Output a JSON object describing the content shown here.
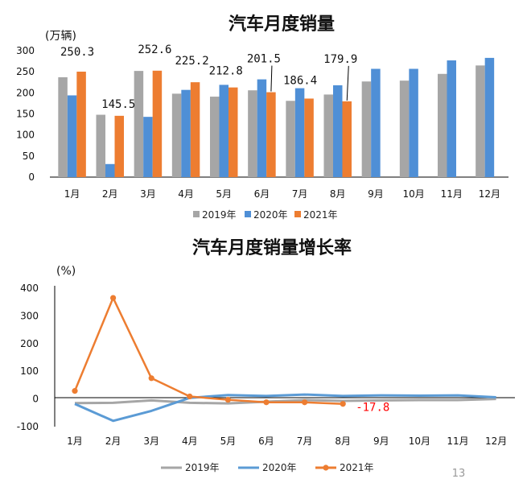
{
  "chart_data": [
    {
      "type": "bar",
      "title": "汽车月度销量",
      "unit_label": "(万辆)",
      "categories": [
        "1月",
        "2月",
        "3月",
        "4月",
        "5月",
        "6月",
        "7月",
        "8月",
        "9月",
        "10月",
        "11月",
        "12月"
      ],
      "ylim": [
        0,
        300
      ],
      "yticks": [
        0,
        50,
        100,
        150,
        200,
        250,
        300
      ],
      "grid": false,
      "legend_position": "bottom",
      "series": [
        {
          "name": "2019年",
          "color": "#a6a6a6",
          "values": [
            237,
            148,
            252,
            198,
            191,
            206,
            181,
            196,
            227,
            229,
            245,
            265
          ]
        },
        {
          "name": "2020年",
          "color": "#4f8fd6",
          "values": [
            194,
            31,
            143,
            207,
            219,
            232,
            211,
            218,
            257,
            257,
            277,
            283
          ]
        },
        {
          "name": "2021年",
          "color": "#ed7d31",
          "values": [
            250.3,
            145.5,
            252.6,
            225.2,
            212.8,
            201.5,
            186.4,
            179.9,
            null,
            null,
            null,
            null
          ]
        }
      ],
      "data_labels": [
        {
          "index": 0,
          "text": "250.3"
        },
        {
          "index": 1,
          "text": "145.5"
        },
        {
          "index": 2,
          "text": "252.6"
        },
        {
          "index": 3,
          "text": "225.2"
        },
        {
          "index": 4,
          "text": "212.8"
        },
        {
          "index": 5,
          "text": "201.5"
        },
        {
          "index": 6,
          "text": "186.4"
        },
        {
          "index": 7,
          "text": "179.9"
        }
      ]
    },
    {
      "type": "line",
      "title": "汽车月度销量增长率",
      "unit_label": "(%)",
      "categories": [
        "1月",
        "2月",
        "3月",
        "4月",
        "5月",
        "6月",
        "7月",
        "8月",
        "9月",
        "10月",
        "11月",
        "12月"
      ],
      "ylim": [
        -100,
        400
      ],
      "yticks": [
        -100,
        0,
        100,
        200,
        300,
        400
      ],
      "grid": false,
      "legend_position": "bottom",
      "series": [
        {
          "name": "2019年",
          "color": "#a6a6a6",
          "values": [
            -15,
            -14,
            -5,
            -14,
            -16,
            -10,
            -4,
            -7,
            -5,
            -4,
            -4,
            0
          ]
        },
        {
          "name": "2020年",
          "color": "#5b9bd5",
          "values": [
            -18,
            -79,
            -43,
            4,
            14,
            11,
            16,
            11,
            13,
            12,
            13,
            6
          ]
        },
        {
          "name": "2021年",
          "color": "#ed7d31",
          "values": [
            29,
            365,
            75,
            9,
            -3,
            -12,
            -12,
            -17.8,
            null,
            null,
            null,
            null
          ]
        }
      ],
      "end_label": "-17.8",
      "end_label_color": "#ff0000"
    }
  ],
  "page_number": "13"
}
